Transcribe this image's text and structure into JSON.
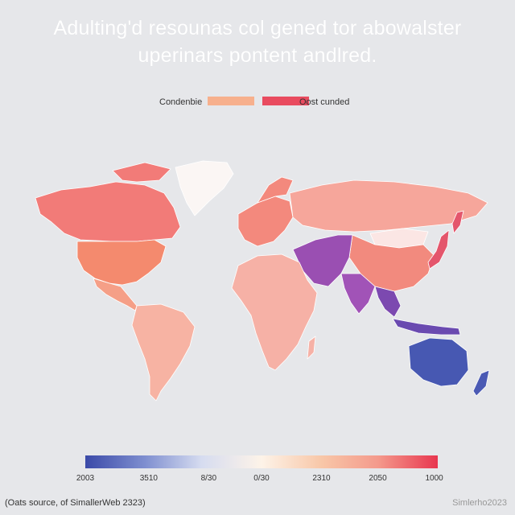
{
  "title": {
    "line1": "Adulting'd resounas col gened tor abowalster",
    "line2": "uperinars pontent andlred."
  },
  "legend": {
    "item1": {
      "label": "Condenbie",
      "color": "#f7b08d"
    },
    "item2": {
      "label": "Oost cunded",
      "color": "#e94b5f"
    }
  },
  "colorbar": {
    "ticks": [
      "2003",
      "3510",
      "8/30",
      "0/30",
      "2310",
      "2050",
      "1000"
    ],
    "colors": [
      "#3b4aa8",
      "#7f8fd0",
      "#d6dcf0",
      "#fdf3e8",
      "#f8c7a8",
      "#f49a8c",
      "#e8364f"
    ]
  },
  "source": "(Oats source, of SimallerWeb 2323)",
  "watermark": "Simlerho2023",
  "map_colors": {
    "greenland": "#fbf6f4",
    "canada": "#f27b78",
    "usa": "#f48a6e",
    "central_america": "#f59f87",
    "south_america": "#f7b3a3",
    "europe": "#f3897d",
    "russia": "#f6a69b",
    "africa": "#f6b1a6",
    "middle_east": "#9a4fb2",
    "india": "#a153b7",
    "china": "#f28a7e",
    "mongolia": "#fbe6e4",
    "se_asia": "#7c49b0",
    "japan": "#e4566c",
    "australia": "#4758b2",
    "indonesia": "#6a4ab0",
    "new_zealand": "#4b5ab4"
  }
}
